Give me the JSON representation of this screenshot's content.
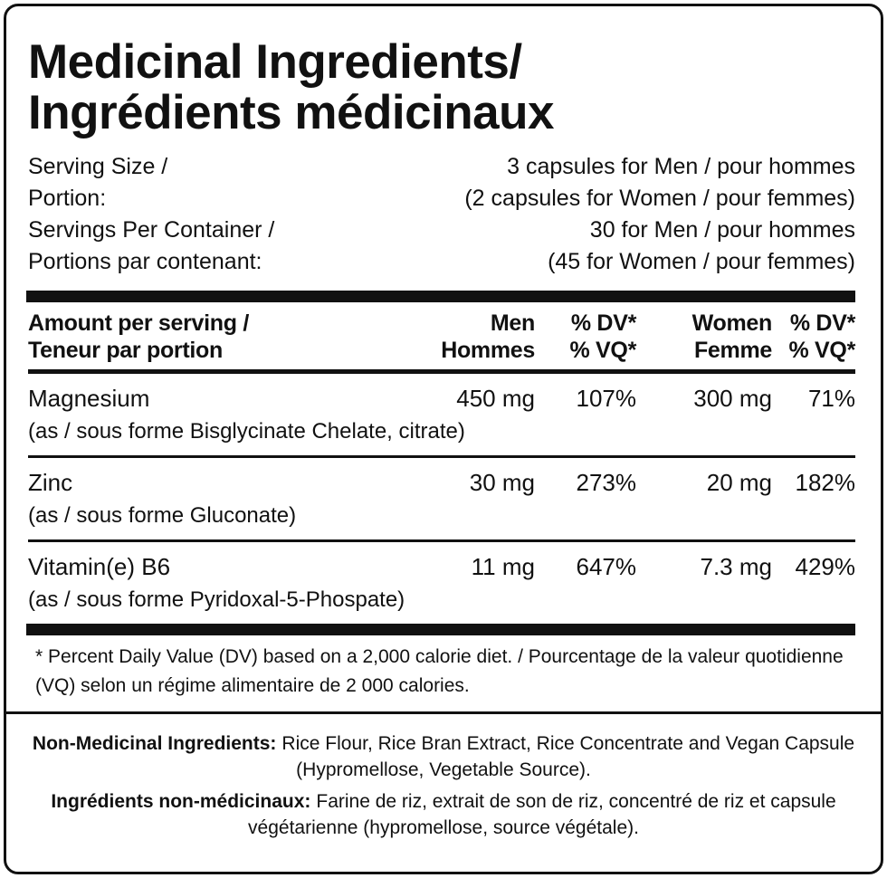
{
  "title": [
    "Medicinal Ingredients/",
    "Ingrédients médicinaux"
  ],
  "serving": [
    [
      "Serving Size /",
      "3 capsules for Men / pour hommes"
    ],
    [
      "Portion:",
      "(2 capsules for Women / pour femmes)"
    ],
    [
      "Servings Per Container /",
      "30 for Men / pour hommes"
    ],
    [
      "Portions par contenant:",
      "(45 for Women / pour femmes)"
    ]
  ],
  "table": {
    "header": [
      [
        "Amount per serving /",
        "Teneur par portion"
      ],
      [
        "Men",
        "Hommes"
      ],
      [
        "% DV*",
        "% VQ*"
      ],
      [
        "Women",
        "Femme"
      ],
      [
        "% DV*",
        "% VQ*"
      ]
    ],
    "rows": [
      {
        "name": "Magnesium",
        "men": "450 mg",
        "men_dv": "107%",
        "women": "300 mg",
        "women_dv": "71%",
        "source": "(as / sous forme Bisglycinate Chelate, citrate)"
      },
      {
        "name": "Zinc",
        "men": "30 mg",
        "men_dv": "273%",
        "women": "20 mg",
        "women_dv": "182%",
        "source": "(as / sous forme Gluconate)"
      },
      {
        "name": "Vitamin(e) B6",
        "men": "11 mg",
        "men_dv": "647%",
        "women": "7.3 mg",
        "women_dv": "429%",
        "source": "(as / sous forme Pyridoxal-5-Phospate)"
      }
    ]
  },
  "footnote": "* Percent Daily Value (DV) based on a 2,000 calorie diet. / Pourcentage de la valeur quotidienne (VQ) selon un régime alimentaire de 2 000 calories.",
  "non_medicinal": [
    {
      "label": "Non-Medicinal Ingredients:",
      "text": "Rice Flour, Rice Bran Extract, Rice Concentrate and Vegan Capsule (Hypromellose, Vegetable Source)."
    },
    {
      "label": "Ingrédients non-médicinaux:",
      "text": "Farine de riz, extrait de son de riz, concentré de riz et capsule végétarienne (hypromellose, source végétale)."
    }
  ]
}
